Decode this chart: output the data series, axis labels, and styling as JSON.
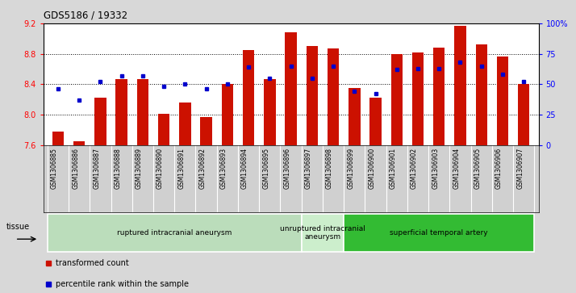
{
  "title": "GDS5186 / 19332",
  "samples": [
    "GSM1306885",
    "GSM1306886",
    "GSM1306887",
    "GSM1306888",
    "GSM1306889",
    "GSM1306890",
    "GSM1306891",
    "GSM1306892",
    "GSM1306893",
    "GSM1306894",
    "GSM1306895",
    "GSM1306896",
    "GSM1306897",
    "GSM1306898",
    "GSM1306899",
    "GSM1306900",
    "GSM1306901",
    "GSM1306902",
    "GSM1306903",
    "GSM1306904",
    "GSM1306905",
    "GSM1306906",
    "GSM1306907"
  ],
  "bar_values": [
    7.78,
    7.65,
    8.22,
    8.47,
    8.47,
    8.01,
    8.16,
    7.97,
    8.4,
    8.85,
    8.47,
    9.08,
    8.9,
    8.87,
    8.35,
    8.22,
    8.8,
    8.82,
    8.88,
    9.17,
    8.92,
    8.77,
    8.4
  ],
  "percentile_values": [
    46,
    37,
    52,
    57,
    57,
    48,
    50,
    46,
    50,
    64,
    55,
    65,
    55,
    65,
    44,
    42,
    62,
    63,
    63,
    68,
    65,
    58,
    52
  ],
  "ylim_left": [
    7.6,
    9.2
  ],
  "ylim_right": [
    0,
    100
  ],
  "yticks_left": [
    7.6,
    8.0,
    8.4,
    8.8,
    9.2
  ],
  "yticks_right": [
    0,
    25,
    50,
    75,
    100
  ],
  "ytick_labels_right": [
    "0",
    "25",
    "50",
    "75",
    "100%"
  ],
  "bar_color": "#cc1100",
  "dot_color": "#0000cc",
  "bar_bottom": 7.6,
  "grid_lines": [
    8.0,
    8.4,
    8.8
  ],
  "groups": [
    {
      "label": "ruptured intracranial aneurysm",
      "start": 0,
      "end": 12,
      "color": "#bbddbb"
    },
    {
      "label": "unruptured intracranial\naneurysm",
      "start": 12,
      "end": 14,
      "color": "#cceecc"
    },
    {
      "label": "superficial temporal artery",
      "start": 14,
      "end": 23,
      "color": "#33bb33"
    }
  ],
  "tissue_label": "tissue",
  "legend": [
    {
      "label": "transformed count",
      "color": "#cc1100"
    },
    {
      "label": "percentile rank within the sample",
      "color": "#0000cc"
    }
  ],
  "fig_bg": "#d8d8d8",
  "plot_bg": "#ffffff",
  "xlabel_bg": "#d0d0d0"
}
